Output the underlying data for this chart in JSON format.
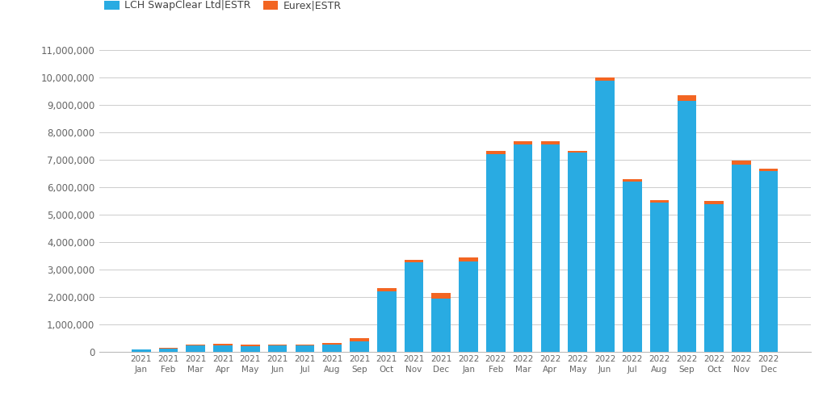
{
  "categories": [
    "2021\nJan",
    "2021\nFeb",
    "2021\nMar",
    "2021\nApr",
    "2021\nMay",
    "2021\nJun",
    "2021\nJul",
    "2021\nAug",
    "2021\nSep",
    "2021\nOct",
    "2021\nNov",
    "2021\nDec",
    "2022\nJan",
    "2022\nFeb",
    "2022\nMar",
    "2022\nApr",
    "2022\nMay",
    "2022\nJun",
    "2022\nJul",
    "2022\nAug",
    "2022\nSep",
    "2022\nOct",
    "2022\nNov",
    "2022\nDec"
  ],
  "lch_values": [
    80000,
    120000,
    230000,
    250000,
    220000,
    230000,
    230000,
    280000,
    380000,
    2200000,
    3250000,
    1950000,
    3300000,
    7200000,
    7550000,
    7550000,
    7250000,
    9880000,
    6200000,
    5430000,
    9150000,
    5380000,
    6830000,
    6570000
  ],
  "eurex_values": [
    20000,
    30000,
    50000,
    40000,
    40000,
    40000,
    40000,
    50000,
    120000,
    130000,
    100000,
    200000,
    150000,
    130000,
    130000,
    110000,
    80000,
    100000,
    100000,
    80000,
    200000,
    100000,
    120000,
    100000
  ],
  "lch_color": "#29ABE2",
  "eurex_color": "#F26522",
  "legend_lch": "LCH SwapClear Ltd|ESTR",
  "legend_eurex": "Eurex|ESTR",
  "ylim": [
    0,
    11000000
  ],
  "yticks": [
    0,
    1000000,
    2000000,
    3000000,
    4000000,
    5000000,
    6000000,
    7000000,
    8000000,
    9000000,
    10000000,
    11000000
  ],
  "background_color": "#ffffff",
  "grid_color": "#cccccc",
  "bar_width": 0.7
}
